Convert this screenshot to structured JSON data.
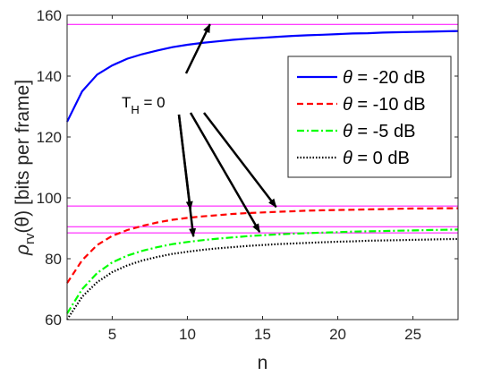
{
  "chart_data": {
    "type": "line",
    "xlabel": "n",
    "ylabel_parts": {
      "rho": "ρ",
      "sub": "rv",
      "arg": "(θ)",
      "rest": " [bits per frame]"
    },
    "xlim": [
      2,
      28
    ],
    "ylim": [
      60,
      160
    ],
    "xticks": [
      5,
      10,
      15,
      20,
      25
    ],
    "yticks": [
      60,
      80,
      100,
      120,
      140,
      160
    ],
    "x": [
      2,
      3,
      4,
      5,
      6,
      7,
      8,
      9,
      10,
      11,
      12,
      13,
      14,
      15,
      16,
      17,
      18,
      19,
      20,
      21,
      22,
      23,
      24,
      25,
      26,
      27,
      28
    ],
    "series": [
      {
        "name": "θ = -20 dB",
        "legend_label": "= -20 dB",
        "color": "#0000ff",
        "dash": "solid",
        "values": [
          125,
          135,
          140.5,
          143.5,
          145.7,
          147.2,
          148.4,
          149.5,
          150.3,
          150.9,
          151.4,
          151.9,
          152.3,
          152.6,
          152.9,
          153.2,
          153.4,
          153.6,
          153.8,
          154.0,
          154.1,
          154.3,
          154.4,
          154.5,
          154.6,
          154.7,
          154.8
        ]
      },
      {
        "name": "θ = -10 dB",
        "legend_label": "= -10 dB",
        "color": "#ff0000",
        "dash": "dashed",
        "values": [
          72,
          79.5,
          84.5,
          87.5,
          89.4,
          90.8,
          91.9,
          92.8,
          93.4,
          93.9,
          94.3,
          94.7,
          95.0,
          95.2,
          95.4,
          95.6,
          95.8,
          95.9,
          96.0,
          96.1,
          96.2,
          96.3,
          96.4,
          96.5,
          96.5,
          96.6,
          96.6
        ]
      },
      {
        "name": "θ = -5 dB",
        "legend_label": "= -5 dB",
        "color": "#00ff00",
        "dash": "dashdot",
        "values": [
          62,
          70,
          75.3,
          78.8,
          81.0,
          82.6,
          83.8,
          84.8,
          85.5,
          86.1,
          86.6,
          87.0,
          87.4,
          87.7,
          88.0,
          88.2,
          88.4,
          88.6,
          88.7,
          88.9,
          89.0,
          89.1,
          89.2,
          89.3,
          89.4,
          89.5,
          89.6
        ]
      },
      {
        "name": "θ = 0 dB",
        "legend_label": "= 0 dB",
        "color": "#000000",
        "dash": "dotted",
        "values": [
          60,
          67.5,
          72.3,
          75.6,
          77.8,
          79.4,
          80.6,
          81.6,
          82.3,
          82.9,
          83.4,
          83.8,
          84.2,
          84.5,
          84.8,
          85.0,
          85.2,
          85.4,
          85.6,
          85.7,
          85.9,
          86.0,
          86.1,
          86.2,
          86.3,
          86.4,
          86.5
        ]
      }
    ],
    "reference_lines": {
      "color": "#ff00ff",
      "y": [
        157,
        97.3,
        90.5,
        88.5
      ]
    },
    "annotation": {
      "label": "T",
      "sub": "H",
      "rest": " =  0"
    },
    "grid": false,
    "legend_position": "right-middle"
  }
}
